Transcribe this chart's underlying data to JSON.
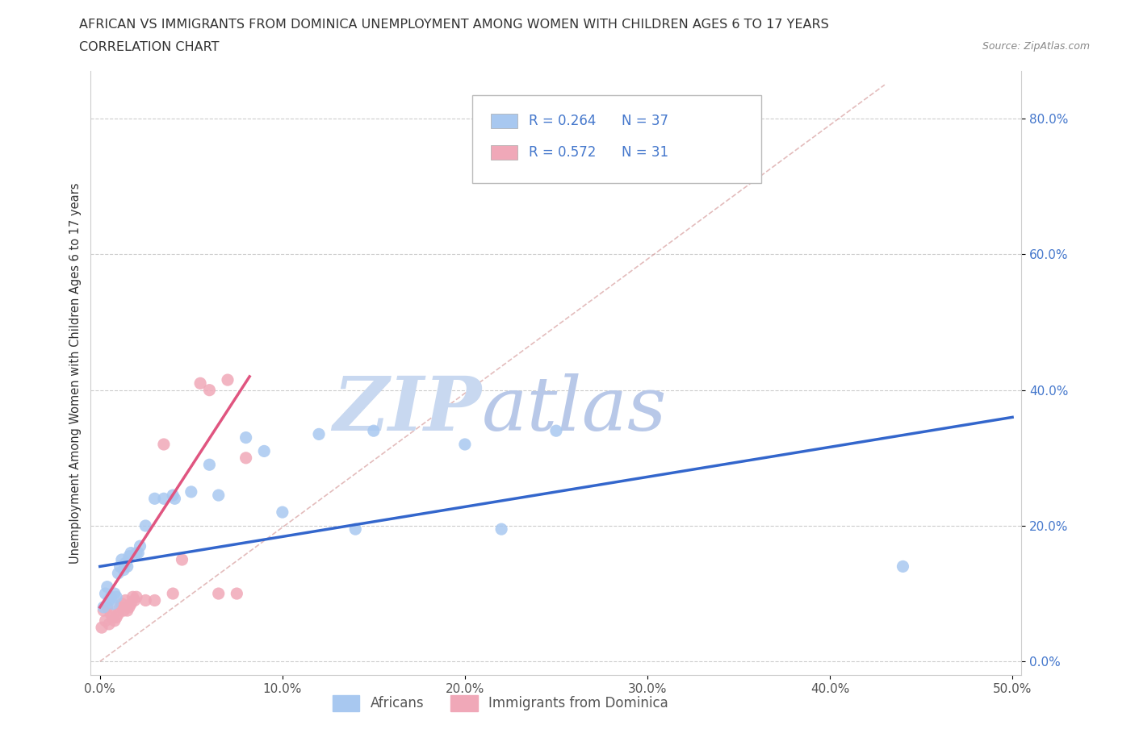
{
  "title_line1": "AFRICAN VS IMMIGRANTS FROM DOMINICA UNEMPLOYMENT AMONG WOMEN WITH CHILDREN AGES 6 TO 17 YEARS",
  "title_line2": "CORRELATION CHART",
  "source": "Source: ZipAtlas.com",
  "ylabel": "Unemployment Among Women with Children Ages 6 to 17 years",
  "xlim": [
    -0.005,
    0.505
  ],
  "ylim": [
    -0.02,
    0.87
  ],
  "xticks": [
    0.0,
    0.1,
    0.2,
    0.3,
    0.4,
    0.5
  ],
  "xticklabels": [
    "0.0%",
    "10.0%",
    "20.0%",
    "30.0%",
    "40.0%",
    "50.0%"
  ],
  "yticks": [
    0.0,
    0.2,
    0.4,
    0.6,
    0.8
  ],
  "yticklabels": [
    "0.0%",
    "20.0%",
    "40.0%",
    "60.0%",
    "80.0%"
  ],
  "blue_color": "#a8c8f0",
  "pink_color": "#f0a8b8",
  "blue_line_color": "#3366cc",
  "pink_line_color": "#e05580",
  "diag_color": "#d8a0a0",
  "watermark_color": "#cdddf5",
  "africans_x": [
    0.002,
    0.003,
    0.004,
    0.005,
    0.006,
    0.007,
    0.008,
    0.009,
    0.01,
    0.011,
    0.012,
    0.013,
    0.014,
    0.015,
    0.016,
    0.017,
    0.02,
    0.021,
    0.022,
    0.025,
    0.03,
    0.035,
    0.04,
    0.041,
    0.05,
    0.06,
    0.065,
    0.08,
    0.09,
    0.1,
    0.12,
    0.14,
    0.15,
    0.2,
    0.22,
    0.25,
    0.44
  ],
  "africans_y": [
    0.08,
    0.1,
    0.11,
    0.09,
    0.095,
    0.085,
    0.1,
    0.095,
    0.13,
    0.14,
    0.15,
    0.135,
    0.145,
    0.14,
    0.155,
    0.16,
    0.16,
    0.16,
    0.17,
    0.2,
    0.24,
    0.24,
    0.245,
    0.24,
    0.25,
    0.29,
    0.245,
    0.33,
    0.31,
    0.22,
    0.335,
    0.195,
    0.34,
    0.32,
    0.195,
    0.34,
    0.14
  ],
  "dominica_x": [
    0.001,
    0.002,
    0.003,
    0.004,
    0.005,
    0.006,
    0.007,
    0.008,
    0.009,
    0.01,
    0.011,
    0.012,
    0.013,
    0.014,
    0.015,
    0.016,
    0.017,
    0.018,
    0.019,
    0.02,
    0.025,
    0.03,
    0.035,
    0.04,
    0.045,
    0.055,
    0.06,
    0.065,
    0.07,
    0.075,
    0.08
  ],
  "dominica_y": [
    0.05,
    0.075,
    0.06,
    0.08,
    0.055,
    0.07,
    0.065,
    0.06,
    0.065,
    0.07,
    0.08,
    0.085,
    0.075,
    0.09,
    0.075,
    0.08,
    0.085,
    0.095,
    0.09,
    0.095,
    0.09,
    0.09,
    0.32,
    0.1,
    0.15,
    0.41,
    0.4,
    0.1,
    0.415,
    0.1,
    0.3
  ],
  "legend_r_blue": "R = 0.264",
  "legend_n_blue": "N = 37",
  "legend_r_pink": "R = 0.572",
  "legend_n_pink": "N = 31",
  "legend_label_blue": "Africans",
  "legend_label_pink": "Immigrants from Dominica",
  "background_color": "#ffffff",
  "grid_color": "#cccccc",
  "tick_color": "#4477cc",
  "spine_color": "#cccccc"
}
